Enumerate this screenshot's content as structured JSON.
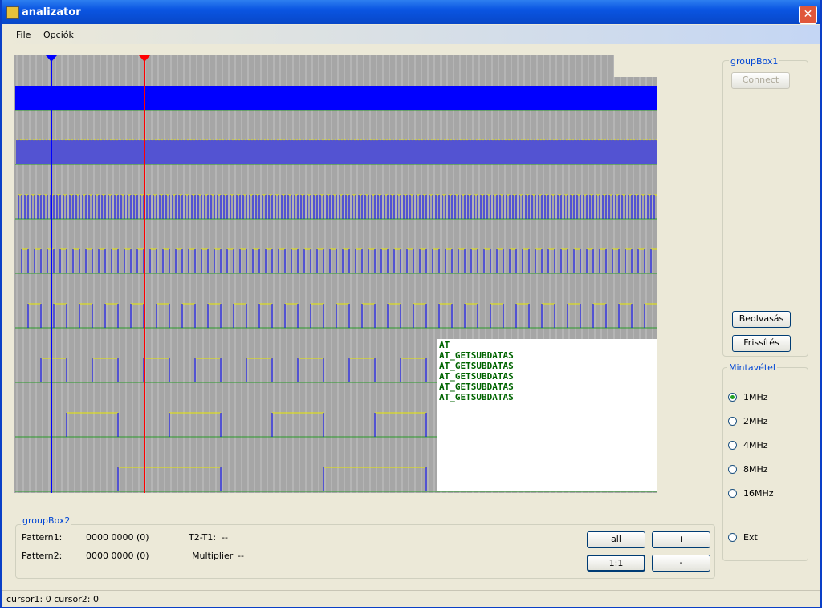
{
  "window": {
    "title": "analizator"
  },
  "menu": [
    "File",
    "Opciók"
  ],
  "log_lines": [
    "AT",
    "AT_GETSUBDATAS",
    "AT_GETSUBDATAS",
    "AT_GETSUBDATAS",
    "AT_GETSUBDATAS",
    "AT_GETSUBDATAS"
  ],
  "group_box1": {
    "title": "groupBox1",
    "connect": "Connect",
    "read": "Beolvasás",
    "refresh": "Frissítés"
  },
  "sampling": {
    "title": "Mintavétel",
    "options": [
      "1MHz",
      "2MHz",
      "4MHz",
      "8MHz",
      "16MHz",
      "Ext"
    ]
  },
  "group_box2": {
    "title": "groupBox2",
    "pattern1_label": "Pattern1:",
    "pattern1_value": "0000 0000 (0)",
    "t2t1_label": "T2-T1:",
    "t2t1_value": "--",
    "pattern2_label": "Pattern2:",
    "pattern2_value": "0000 0000 (0)",
    "multiplier_label": "Multiplier",
    "multiplier_value": "--"
  },
  "zoom_buttons": {
    "all": "all",
    "plus": "+",
    "one_to_one": "1:1",
    "minus": "-"
  },
  "status": "cursor1: 0 cursor2: 0"
}
